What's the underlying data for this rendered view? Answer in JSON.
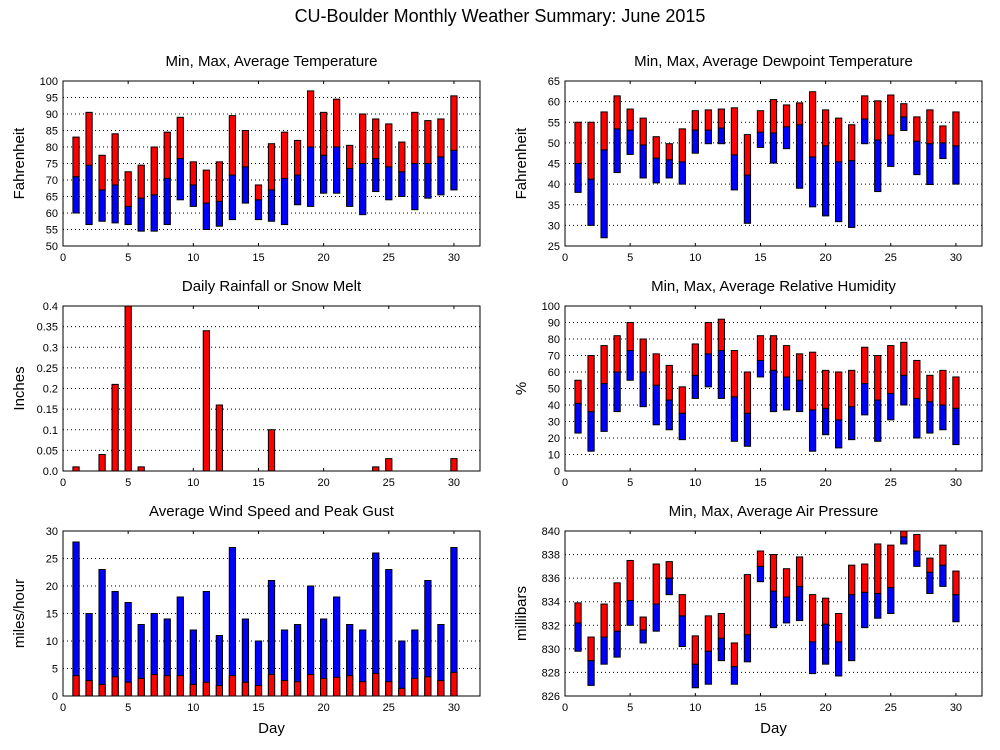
{
  "title": "CU-Boulder Monthly Weather Summary: June 2015",
  "colors": {
    "min_avg": "#0000ff",
    "avg_max": "#ff0000",
    "rain": "#ff0000",
    "wind_avg": "#ff0000",
    "wind_gust": "#0000ff"
  },
  "chart_data": [
    {
      "type": "bar",
      "subtype": "floating-range",
      "title": "Min, Max, Average Temperature",
      "xlabel": "",
      "ylabel": "Fahrenheit",
      "xlim": [
        0,
        32
      ],
      "ylim": [
        50,
        100
      ],
      "xticks": [
        0,
        5,
        10,
        15,
        20,
        25,
        30
      ],
      "yticks": [
        50,
        55,
        60,
        65,
        70,
        75,
        80,
        85,
        90,
        95,
        100
      ],
      "grid": true,
      "x": [
        1,
        2,
        3,
        4,
        5,
        6,
        7,
        8,
        9,
        10,
        11,
        12,
        13,
        14,
        15,
        16,
        17,
        18,
        19,
        20,
        21,
        22,
        23,
        24,
        25,
        26,
        27,
        28,
        29,
        30
      ],
      "min": [
        60,
        56.5,
        57.5,
        57,
        56.5,
        54.5,
        54.5,
        56.5,
        64,
        62,
        55,
        56,
        58,
        63,
        58,
        57.5,
        56.5,
        62.5,
        62,
        66,
        66,
        62,
        59.5,
        66.5,
        64,
        65,
        61,
        64.5,
        65.5,
        67
      ],
      "avg": [
        71,
        74.5,
        67,
        68.5,
        62,
        64.5,
        65.5,
        70.5,
        76.5,
        68.5,
        63,
        63.5,
        71.5,
        74,
        64,
        67,
        70.5,
        71.5,
        80,
        77.5,
        80,
        73.5,
        75,
        76.5,
        74,
        72.5,
        75,
        75,
        77,
        79
      ],
      "max": [
        83,
        90.5,
        77.5,
        84,
        72.5,
        74.5,
        80,
        84.5,
        89,
        75.5,
        73,
        75.5,
        89.5,
        85,
        68.5,
        81,
        84.5,
        82,
        97,
        90.5,
        94.5,
        80.5,
        90,
        88.5,
        87,
        81.5,
        90.5,
        88,
        88.5,
        95.5
      ]
    },
    {
      "type": "bar",
      "subtype": "floating-range",
      "title": "Min, Max, Average Dewpoint Temperature",
      "xlabel": "",
      "ylabel": "Fahrenheit",
      "xlim": [
        0,
        32
      ],
      "ylim": [
        25,
        65
      ],
      "xticks": [
        0,
        5,
        10,
        15,
        20,
        25,
        30
      ],
      "yticks": [
        25,
        30,
        35,
        40,
        45,
        50,
        55,
        60,
        65
      ],
      "grid": true,
      "x": [
        1,
        2,
        3,
        4,
        5,
        6,
        7,
        8,
        9,
        10,
        11,
        12,
        13,
        14,
        15,
        16,
        17,
        18,
        19,
        20,
        21,
        22,
        23,
        24,
        25,
        26,
        27,
        28,
        29,
        30
      ],
      "min": [
        38,
        30,
        27,
        42.8,
        47.2,
        41.5,
        40.3,
        41.5,
        40,
        47.5,
        49.8,
        49.8,
        38.6,
        30.5,
        48.9,
        45.1,
        48.6,
        39,
        34.5,
        32.3,
        30.9,
        29.5,
        49.8,
        38.2,
        44.3,
        53,
        42.3,
        39.9,
        46.2,
        40
      ],
      "avg": [
        45,
        41.2,
        48.3,
        53.4,
        53.1,
        49.5,
        46.3,
        45.9,
        45.4,
        53.1,
        53.1,
        53.6,
        47.1,
        42.2,
        52.6,
        52.4,
        53.9,
        54.4,
        46.6,
        49.3,
        45.4,
        45.7,
        55.8,
        50.7,
        51.9,
        56.3,
        50.4,
        49.8,
        50,
        49.3
      ],
      "max": [
        55,
        55,
        57.5,
        61.4,
        58.2,
        56,
        51.5,
        49.8,
        53.4,
        57.8,
        58,
        58.2,
        58.5,
        52,
        57.8,
        60.5,
        59.2,
        59.7,
        62.4,
        58,
        56,
        54.4,
        61.4,
        60.2,
        61.6,
        59.5,
        56.3,
        58,
        54.1,
        57.5
      ]
    },
    {
      "type": "bar",
      "title": "Daily Rainfall or Snow Melt",
      "xlabel": "",
      "ylabel": "Inches",
      "xlim": [
        0,
        32
      ],
      "ylim": [
        0,
        0.4
      ],
      "xticks": [
        0,
        5,
        10,
        15,
        20,
        25,
        30
      ],
      "yticks": [
        "0.0",
        "0.05",
        "0.1",
        "0.15",
        "0.2",
        "0.25",
        "0.3",
        "0.35",
        "0.4"
      ],
      "grid": true,
      "x": [
        1,
        2,
        3,
        4,
        5,
        6,
        7,
        8,
        9,
        10,
        11,
        12,
        13,
        14,
        15,
        16,
        17,
        18,
        19,
        20,
        21,
        22,
        23,
        24,
        25,
        26,
        27,
        28,
        29,
        30
      ],
      "values": [
        0.01,
        0,
        0.04,
        0.21,
        0.4,
        0.01,
        0,
        0,
        0,
        0,
        0.34,
        0.16,
        0,
        0,
        0,
        0.1,
        0,
        0,
        0,
        0,
        0,
        0,
        0,
        0.01,
        0.03,
        0,
        0,
        0,
        0,
        0.03
      ]
    },
    {
      "type": "bar",
      "subtype": "floating-range",
      "title": "Min, Max, Average Relative Humidity",
      "xlabel": "",
      "ylabel": "%",
      "xlim": [
        0,
        32
      ],
      "ylim": [
        0,
        100
      ],
      "xticks": [
        0,
        5,
        10,
        15,
        20,
        25,
        30
      ],
      "yticks": [
        0,
        10,
        20,
        30,
        40,
        50,
        60,
        70,
        80,
        90,
        100
      ],
      "grid": true,
      "x": [
        1,
        2,
        3,
        4,
        5,
        6,
        7,
        8,
        9,
        10,
        11,
        12,
        13,
        14,
        15,
        16,
        17,
        18,
        19,
        20,
        21,
        22,
        23,
        24,
        25,
        26,
        27,
        28,
        29,
        30
      ],
      "min": [
        23,
        12,
        24,
        36,
        55,
        39,
        28,
        25,
        19,
        44,
        51,
        44,
        18,
        15,
        57,
        36,
        37,
        36,
        12,
        22,
        14,
        19,
        34,
        18,
        31,
        40,
        20,
        23,
        25,
        16
      ],
      "avg": [
        41,
        36,
        53,
        60,
        73,
        60,
        52,
        43,
        35,
        58,
        71,
        73,
        45,
        35,
        67,
        61,
        57,
        55,
        37,
        38,
        31,
        39,
        53,
        43,
        47,
        58,
        44,
        42,
        40,
        38
      ],
      "max": [
        55,
        70,
        76,
        82,
        90,
        80,
        71,
        64,
        51,
        77,
        90,
        92,
        73,
        60,
        82,
        82,
        76,
        71,
        72,
        61,
        60,
        61,
        75,
        70,
        76,
        78,
        67,
        58,
        61,
        57
      ]
    },
    {
      "type": "bar",
      "subtype": "overlay",
      "title": "Average Wind Speed and Peak Gust",
      "xlabel": "Day",
      "ylabel": "miles/hour",
      "xlim": [
        0,
        32
      ],
      "ylim": [
        0,
        30
      ],
      "xticks": [
        0,
        5,
        10,
        15,
        20,
        25,
        30
      ],
      "yticks": [
        0,
        5,
        10,
        15,
        20,
        25,
        30
      ],
      "grid": true,
      "x": [
        1,
        2,
        3,
        4,
        5,
        6,
        7,
        8,
        9,
        10,
        11,
        12,
        13,
        14,
        15,
        16,
        17,
        18,
        19,
        20,
        21,
        22,
        23,
        24,
        25,
        26,
        27,
        28,
        29,
        30
      ],
      "avg": [
        3.7,
        2.8,
        2.1,
        3.5,
        2.5,
        3.2,
        3.9,
        3.7,
        3.7,
        2.1,
        2.5,
        1.9,
        3.7,
        2.5,
        1.9,
        3.9,
        2.8,
        2.6,
        3.9,
        3.2,
        3.4,
        3.7,
        2.6,
        4.1,
        2.6,
        1.4,
        3.2,
        3.5,
        2.8,
        4.3
      ],
      "gust": [
        28,
        15,
        23,
        19,
        17,
        13,
        15,
        14,
        18,
        12,
        19,
        11,
        27,
        14,
        10,
        21,
        12,
        13,
        20,
        14,
        18,
        13,
        12,
        26,
        23,
        10,
        12,
        21,
        13,
        27
      ]
    },
    {
      "type": "bar",
      "subtype": "floating-range",
      "title": "Min, Max, Average Air Pressure",
      "xlabel": "Day",
      "ylabel": "millibars",
      "xlim": [
        0,
        32
      ],
      "ylim": [
        826,
        840
      ],
      "xticks": [
        0,
        5,
        10,
        15,
        20,
        25,
        30
      ],
      "yticks": [
        826,
        828,
        830,
        832,
        834,
        836,
        838,
        840
      ],
      "grid": true,
      "x": [
        1,
        2,
        3,
        4,
        5,
        6,
        7,
        8,
        9,
        10,
        11,
        12,
        13,
        14,
        15,
        16,
        17,
        18,
        19,
        20,
        21,
        22,
        23,
        24,
        25,
        26,
        27,
        28,
        29,
        30
      ],
      "min": [
        829.8,
        826.9,
        828.7,
        829.3,
        832,
        830.5,
        831.5,
        834.6,
        830.2,
        826.7,
        827,
        829,
        827,
        828.9,
        835.7,
        831.8,
        832.2,
        832.4,
        827.9,
        828.7,
        827.7,
        829,
        831.8,
        832.6,
        833,
        838.9,
        837,
        834.7,
        835.3,
        832.3
      ],
      "avg": [
        832.2,
        829,
        831,
        831.5,
        834.1,
        831.6,
        833.8,
        836,
        832.8,
        828.7,
        829.8,
        830.9,
        828.5,
        831.2,
        837,
        834.9,
        834.4,
        835.3,
        830.6,
        832.1,
        830.6,
        834.6,
        834.8,
        834.7,
        835.2,
        839.5,
        838.3,
        836.5,
        837.1,
        834.6
      ],
      "max": [
        833.9,
        831,
        833.8,
        835.6,
        837.5,
        832.7,
        837.2,
        837.4,
        834.6,
        831.1,
        832.8,
        833,
        830.5,
        836.3,
        838.3,
        838,
        836.8,
        837.8,
        834.6,
        834.3,
        833,
        837.1,
        837.2,
        838.9,
        838.8,
        840.5,
        839.7,
        837.7,
        838.8,
        836.6
      ]
    }
  ]
}
